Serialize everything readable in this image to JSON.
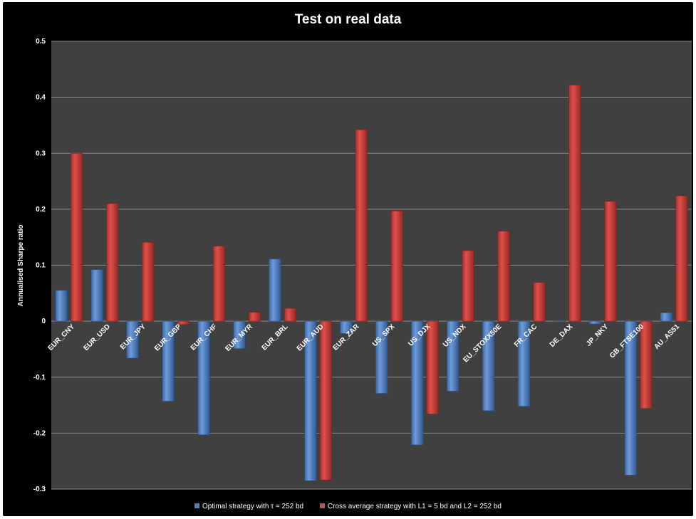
{
  "chart_data": {
    "type": "bar",
    "title": "Test on real data",
    "xlabel": "",
    "ylabel": "Annualised Sharpe ratio",
    "ylim": [
      -0.3,
      0.5
    ],
    "yticks": [
      "-0.3",
      "-0.2",
      "-0.1",
      "0",
      "0.1",
      "0.2",
      "0.3",
      "0.4",
      "0.5"
    ],
    "grid": true,
    "legend_position": "bottom",
    "background": "#000000",
    "plot_background": "#404040",
    "categories": [
      "EUR_CNY",
      "EUR_USD",
      "EUR_JPY",
      "EUR_GBP",
      "EUR_CHF",
      "EUR_MYR",
      "EUR_BRL",
      "EUR_AUD",
      "EUR_ZAR",
      "US_SPX",
      "US_DJX",
      "US_NDX",
      "EU_STOXX50E",
      "FR_CAC",
      "DE_DAX",
      "JP_NKY",
      "GB_FTSE100",
      "AU_AS51"
    ],
    "series": [
      {
        "name": "Optimal strategy with τ = 252 bd",
        "color": "#4f81bd",
        "values": [
          0.055,
          0.092,
          -0.066,
          -0.143,
          -0.203,
          -0.049,
          0.111,
          -0.285,
          -0.022,
          -0.129,
          -0.221,
          -0.125,
          -0.16,
          -0.152,
          0.0,
          -0.005,
          -0.275,
          0.015
        ]
      },
      {
        "name": "Cross average strategy with L1 = 5 bd and L2 = 252 bd",
        "color": "#c0504d",
        "values": [
          0.3,
          0.21,
          0.141,
          -0.006,
          0.134,
          0.016,
          0.023,
          -0.284,
          0.342,
          0.197,
          -0.166,
          0.126,
          0.161,
          0.069,
          0.422,
          0.214,
          -0.156,
          0.224
        ]
      }
    ]
  }
}
